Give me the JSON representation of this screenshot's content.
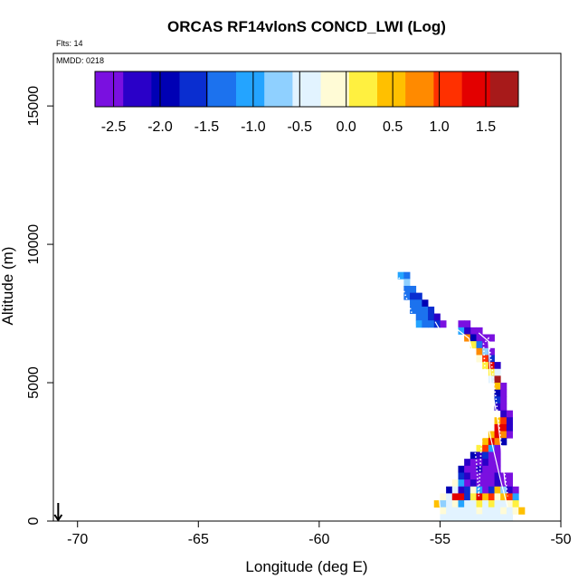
{
  "chart_data": {
    "type": "heatmap",
    "title": "ORCAS RF14vlonS CONCD_LWI (Log)",
    "xlabel": "Longitude (deg E)",
    "ylabel": "Altitude (m)",
    "xlim": [
      -71,
      -50
    ],
    "ylim": [
      0,
      16500
    ],
    "xticks": [
      "-70",
      "-65",
      "-60",
      "-55",
      "-50"
    ],
    "yticks": [
      "0",
      "5000",
      "10000",
      "15000"
    ],
    "flts_label": "Flts: 14",
    "mmdd_label": "MMDD: 0218",
    "colorbar": {
      "range": [
        -2.7,
        1.85
      ],
      "ticks": [
        "-2.5",
        "-2.0",
        "-1.5",
        "-1.0",
        "-0.5",
        "0.0",
        "0.5",
        "1.0",
        "1.5"
      ],
      "colors": [
        "#7a10e0",
        "#2a00c8",
        "#0000b4",
        "#0a2ed0",
        "#1c72ee",
        "#24a4ff",
        "#8fd0ff",
        "#e2f3ff",
        "#fffbd6",
        "#fff040",
        "#ffc000",
        "#ff8a00",
        "#ff3000",
        "#e30000",
        "#a71a1a"
      ]
    },
    "grid_cell": {
      "dx": 0.25,
      "dy": 250
    },
    "cells": [
      {
        "x": -56.75,
        "y": 8750,
        "v": -1.1
      },
      {
        "x": -56.5,
        "y": 8750,
        "v": -1.2
      },
      {
        "x": -56.5,
        "y": 8500,
        "v": -0.8
      },
      {
        "x": -56.5,
        "y": 8250,
        "v": -1.2
      },
      {
        "x": -56.25,
        "y": 8250,
        "v": -1.3
      },
      {
        "x": -56.5,
        "y": 8000,
        "v": -1.4
      },
      {
        "x": -56.25,
        "y": 8000,
        "v": -1.6
      },
      {
        "x": -56.0,
        "y": 8000,
        "v": -1.7
      },
      {
        "x": -56.25,
        "y": 7750,
        "v": -1.4
      },
      {
        "x": -56.0,
        "y": 7750,
        "v": -1.3
      },
      {
        "x": -55.75,
        "y": 7750,
        "v": -1.8
      },
      {
        "x": -56.25,
        "y": 7500,
        "v": -1.3
      },
      {
        "x": -56.0,
        "y": 7500,
        "v": -1.2
      },
      {
        "x": -55.75,
        "y": 7500,
        "v": -1.4
      },
      {
        "x": -55.5,
        "y": 7500,
        "v": -1.6
      },
      {
        "x": -56.0,
        "y": 7250,
        "v": -1.2
      },
      {
        "x": -55.75,
        "y": 7250,
        "v": -1.3
      },
      {
        "x": -55.5,
        "y": 7250,
        "v": -1.5
      },
      {
        "x": -55.25,
        "y": 7250,
        "v": -2.3
      },
      {
        "x": -54.25,
        "y": 7000,
        "v": -2.5
      },
      {
        "x": -54.0,
        "y": 7000,
        "v": -2.4
      },
      {
        "x": -56.0,
        "y": 7000,
        "v": -1.1
      },
      {
        "x": -55.75,
        "y": 7000,
        "v": -1.2
      },
      {
        "x": -55.5,
        "y": 7000,
        "v": -1.3
      },
      {
        "x": -55.25,
        "y": 7000,
        "v": -1.7
      },
      {
        "x": -55.0,
        "y": 7000,
        "v": -2.4
      },
      {
        "x": -53.75,
        "y": 6750,
        "v": -2.5
      },
      {
        "x": -53.5,
        "y": 6750,
        "v": -2.6
      },
      {
        "x": -54.25,
        "y": 6750,
        "v": -1.0
      },
      {
        "x": -54.0,
        "y": 6750,
        "v": -2.2
      },
      {
        "x": -53.25,
        "y": 6500,
        "v": -2.6
      },
      {
        "x": -53.0,
        "y": 6500,
        "v": -2.7
      },
      {
        "x": -54.0,
        "y": 6500,
        "v": 0.8
      },
      {
        "x": -53.75,
        "y": 6500,
        "v": -1.8
      },
      {
        "x": -53.5,
        "y": 6500,
        "v": -2.4
      },
      {
        "x": -53.75,
        "y": 6250,
        "v": 0.1
      },
      {
        "x": -53.5,
        "y": 6250,
        "v": -1.2
      },
      {
        "x": -53.25,
        "y": 6250,
        "v": -2.4
      },
      {
        "x": -53.5,
        "y": 6000,
        "v": 0.7
      },
      {
        "x": -53.25,
        "y": 6000,
        "v": -0.6
      },
      {
        "x": -53.0,
        "y": 6000,
        "v": -2.5
      },
      {
        "x": -53.5,
        "y": 5750,
        "v": -0.2
      },
      {
        "x": -53.25,
        "y": 5750,
        "v": 1.2
      },
      {
        "x": -53.0,
        "y": 5750,
        "v": -1.5
      },
      {
        "x": -53.25,
        "y": 5500,
        "v": 0.3
      },
      {
        "x": -53.0,
        "y": 5500,
        "v": 1.4
      },
      {
        "x": -52.75,
        "y": 5500,
        "v": -2.2
      },
      {
        "x": -53.0,
        "y": 5250,
        "v": 0.1
      },
      {
        "x": -52.75,
        "y": 5250,
        "v": -0.3
      },
      {
        "x": -53.0,
        "y": 5000,
        "v": -0.5
      },
      {
        "x": -52.75,
        "y": 5000,
        "v": 1.6
      },
      {
        "x": -52.75,
        "y": 4750,
        "v": 0.4
      },
      {
        "x": -52.5,
        "y": 4750,
        "v": -2.4
      },
      {
        "x": -52.75,
        "y": 4500,
        "v": -2.0
      },
      {
        "x": -52.5,
        "y": 4500,
        "v": -2.4
      },
      {
        "x": -52.75,
        "y": 4250,
        "v": -1.6
      },
      {
        "x": -52.5,
        "y": 4250,
        "v": -2.5
      },
      {
        "x": -52.75,
        "y": 4000,
        "v": -2.3
      },
      {
        "x": -52.5,
        "y": 4000,
        "v": -2.6
      },
      {
        "x": -52.5,
        "y": 3750,
        "v": -2.3
      },
      {
        "x": -52.25,
        "y": 3750,
        "v": -2.5
      },
      {
        "x": -52.75,
        "y": 3500,
        "v": 0.4
      },
      {
        "x": -52.5,
        "y": 3500,
        "v": 1.0
      },
      {
        "x": -52.25,
        "y": 3500,
        "v": -2.3
      },
      {
        "x": -52.75,
        "y": 3250,
        "v": 1.3
      },
      {
        "x": -52.5,
        "y": 3250,
        "v": 1.5
      },
      {
        "x": -52.25,
        "y": 3250,
        "v": -2.2
      },
      {
        "x": -53.0,
        "y": 3000,
        "v": 0.6
      },
      {
        "x": -52.75,
        "y": 3000,
        "v": 1.5
      },
      {
        "x": -52.5,
        "y": 3000,
        "v": 0.9
      },
      {
        "x": -52.25,
        "y": 3000,
        "v": -2.4
      },
      {
        "x": -53.25,
        "y": 2750,
        "v": 0.4
      },
      {
        "x": -53.0,
        "y": 2750,
        "v": 1.3
      },
      {
        "x": -52.75,
        "y": 2750,
        "v": 0.7
      },
      {
        "x": -52.5,
        "y": 2750,
        "v": -2.0
      },
      {
        "x": -53.5,
        "y": 2500,
        "v": 0.2
      },
      {
        "x": -53.25,
        "y": 2500,
        "v": 1.2
      },
      {
        "x": -53.0,
        "y": 2500,
        "v": -1.0
      },
      {
        "x": -52.75,
        "y": 2500,
        "v": -2.5
      },
      {
        "x": -53.75,
        "y": 2250,
        "v": -1.8
      },
      {
        "x": -53.5,
        "y": 2250,
        "v": -2.3
      },
      {
        "x": -53.25,
        "y": 2250,
        "v": -1.5
      },
      {
        "x": -53.0,
        "y": 2250,
        "v": -2.4
      },
      {
        "x": -52.75,
        "y": 2250,
        "v": -2.6
      },
      {
        "x": -54.0,
        "y": 2000,
        "v": -2.2
      },
      {
        "x": -53.75,
        "y": 2000,
        "v": -2.5
      },
      {
        "x": -53.5,
        "y": 2000,
        "v": -2.4
      },
      {
        "x": -53.25,
        "y": 2000,
        "v": -2.2
      },
      {
        "x": -53.0,
        "y": 2000,
        "v": -2.6
      },
      {
        "x": -52.75,
        "y": 2000,
        "v": -2.5
      },
      {
        "x": -54.25,
        "y": 1750,
        "v": -2.0
      },
      {
        "x": -54.0,
        "y": 1750,
        "v": -2.4
      },
      {
        "x": -53.75,
        "y": 1750,
        "v": -2.5
      },
      {
        "x": -53.5,
        "y": 1750,
        "v": -2.3
      },
      {
        "x": -53.25,
        "y": 1750,
        "v": -2.6
      },
      {
        "x": -53.0,
        "y": 1750,
        "v": -2.5
      },
      {
        "x": -52.75,
        "y": 1750,
        "v": -2.4
      },
      {
        "x": -54.25,
        "y": 1500,
        "v": -1.6
      },
      {
        "x": -54.0,
        "y": 1500,
        "v": -2.3
      },
      {
        "x": -53.75,
        "y": 1500,
        "v": -2.6
      },
      {
        "x": -53.5,
        "y": 1500,
        "v": -2.5
      },
      {
        "x": -53.25,
        "y": 1500,
        "v": -2.4
      },
      {
        "x": -53.0,
        "y": 1500,
        "v": -2.5
      },
      {
        "x": -52.75,
        "y": 1500,
        "v": -2.3
      },
      {
        "x": -52.5,
        "y": 1500,
        "v": -2.6
      },
      {
        "x": -52.25,
        "y": 1500,
        "v": -2.7
      },
      {
        "x": -54.5,
        "y": 1250,
        "v": -0.2
      },
      {
        "x": -54.25,
        "y": 1250,
        "v": -1.0
      },
      {
        "x": -54.0,
        "y": 1250,
        "v": -2.5
      },
      {
        "x": -53.75,
        "y": 1250,
        "v": -2.3
      },
      {
        "x": -53.5,
        "y": 1250,
        "v": -2.4
      },
      {
        "x": -53.25,
        "y": 1250,
        "v": -2.6
      },
      {
        "x": -53.0,
        "y": 1250,
        "v": -2.4
      },
      {
        "x": -52.75,
        "y": 1250,
        "v": -2.2
      },
      {
        "x": -52.5,
        "y": 1250,
        "v": -2.4
      },
      {
        "x": -52.25,
        "y": 1250,
        "v": -2.6
      },
      {
        "x": -54.75,
        "y": 1000,
        "v": -1.9
      },
      {
        "x": -54.5,
        "y": 1000,
        "v": -0.4
      },
      {
        "x": -54.25,
        "y": 1000,
        "v": -2.2
      },
      {
        "x": -54.0,
        "y": 1000,
        "v": -1.7
      },
      {
        "x": -53.75,
        "y": 1000,
        "v": -0.1
      },
      {
        "x": -53.5,
        "y": 1000,
        "v": -1.0
      },
      {
        "x": -53.25,
        "y": 1000,
        "v": -2.4
      },
      {
        "x": -53.0,
        "y": 1000,
        "v": -1.6
      },
      {
        "x": -52.75,
        "y": 1000,
        "v": 0.6
      },
      {
        "x": -52.5,
        "y": 1000,
        "v": -0.8
      },
      {
        "x": -52.25,
        "y": 1000,
        "v": -2.2
      },
      {
        "x": -52.0,
        "y": 1000,
        "v": -2.4
      },
      {
        "x": -55.0,
        "y": 750,
        "v": -0.1
      },
      {
        "x": -54.75,
        "y": 750,
        "v": -0.5
      },
      {
        "x": -54.5,
        "y": 750,
        "v": 1.4
      },
      {
        "x": -54.25,
        "y": 750,
        "v": 1.3
      },
      {
        "x": -54.0,
        "y": 750,
        "v": -1.6
      },
      {
        "x": -53.75,
        "y": 750,
        "v": 0.2
      },
      {
        "x": -53.5,
        "y": 750,
        "v": 1.4
      },
      {
        "x": -53.25,
        "y": 750,
        "v": 0.5
      },
      {
        "x": -53.0,
        "y": 750,
        "v": 1.2
      },
      {
        "x": -52.75,
        "y": 750,
        "v": -0.2
      },
      {
        "x": -52.5,
        "y": 750,
        "v": 0.4
      },
      {
        "x": -52.25,
        "y": 750,
        "v": 1.2
      },
      {
        "x": -52.0,
        "y": 750,
        "v": -1.0
      },
      {
        "x": -55.25,
        "y": 500,
        "v": 0.5
      },
      {
        "x": -55.0,
        "y": 500,
        "v": -0.6
      },
      {
        "x": -54.75,
        "y": 500,
        "v": -0.3
      },
      {
        "x": -54.5,
        "y": 500,
        "v": -0.2
      },
      {
        "x": -54.25,
        "y": 500,
        "v": -0.9
      },
      {
        "x": -54.0,
        "y": 500,
        "v": -0.4
      },
      {
        "x": -53.75,
        "y": 500,
        "v": -0.3
      },
      {
        "x": -53.5,
        "y": 500,
        "v": 0.1
      },
      {
        "x": -53.25,
        "y": 500,
        "v": -0.5
      },
      {
        "x": -53.0,
        "y": 500,
        "v": 0.2
      },
      {
        "x": -52.75,
        "y": 500,
        "v": -0.4
      },
      {
        "x": -52.5,
        "y": 500,
        "v": -0.3
      },
      {
        "x": -52.25,
        "y": 500,
        "v": -0.2
      },
      {
        "x": -52.0,
        "y": 500,
        "v": 0.3
      },
      {
        "x": -55.0,
        "y": 250,
        "v": -0.2
      },
      {
        "x": -54.75,
        "y": 250,
        "v": -0.4
      },
      {
        "x": -54.5,
        "y": 250,
        "v": -0.3
      },
      {
        "x": -54.25,
        "y": 250,
        "v": -0.5
      },
      {
        "x": -54.0,
        "y": 250,
        "v": -0.4
      },
      {
        "x": -53.75,
        "y": 250,
        "v": -0.3
      },
      {
        "x": -53.5,
        "y": 250,
        "v": -0.2
      },
      {
        "x": -53.25,
        "y": 250,
        "v": -0.4
      },
      {
        "x": -53.0,
        "y": 250,
        "v": -0.3
      },
      {
        "x": -52.75,
        "y": 250,
        "v": -0.4
      },
      {
        "x": -52.5,
        "y": 250,
        "v": -0.2
      },
      {
        "x": -52.25,
        "y": 250,
        "v": -0.3
      },
      {
        "x": -52.0,
        "y": 250,
        "v": -0.1
      },
      {
        "x": -51.75,
        "y": 250,
        "v": 0.4
      },
      {
        "x": -55.0,
        "y": 0,
        "v": -0.3
      },
      {
        "x": -54.75,
        "y": 0,
        "v": -0.4
      },
      {
        "x": -54.5,
        "y": 0,
        "v": -0.5
      },
      {
        "x": -54.25,
        "y": 0,
        "v": -0.4
      },
      {
        "x": -54.0,
        "y": 0,
        "v": -0.5
      },
      {
        "x": -53.75,
        "y": 0,
        "v": -0.4
      },
      {
        "x": -53.5,
        "y": 0,
        "v": -0.3
      },
      {
        "x": -53.25,
        "y": 0,
        "v": -0.4
      },
      {
        "x": -53.0,
        "y": 0,
        "v": -0.5
      },
      {
        "x": -52.75,
        "y": 0,
        "v": -0.4
      },
      {
        "x": -52.5,
        "y": 0,
        "v": -0.3
      },
      {
        "x": -52.25,
        "y": 0,
        "v": -0.4
      }
    ],
    "flight_track": [
      [
        -56.7,
        8800
      ],
      [
        -56.2,
        7600
      ],
      [
        -55.6,
        5600
      ],
      [
        -55.0,
        3400
      ],
      [
        -54.9,
        2000
      ],
      [
        -55.1,
        900
      ],
      [
        -54.7,
        2600
      ],
      [
        -54.4,
        4600
      ],
      [
        -54.6,
        6200
      ],
      [
        -54.5,
        7000
      ],
      [
        -54.1,
        6500
      ],
      [
        -53.9,
        4500
      ],
      [
        -53.5,
        2200
      ],
      [
        -53.4,
        900
      ],
      [
        -53.3,
        2600
      ],
      [
        -53.1,
        4800
      ],
      [
        -53.2,
        6400
      ],
      [
        -53.0,
        6600
      ],
      [
        -52.7,
        4500
      ],
      [
        -52.4,
        2300
      ],
      [
        -52.2,
        900
      ]
    ],
    "profile_lines": [
      [
        [
          -55.2,
          7200
        ],
        [
          -55.0,
          6900
        ],
        [
          -55.3,
          3900
        ],
        [
          -55.2,
          2400
        ],
        [
          -55.0,
          500
        ]
      ],
      [
        [
          -54.4,
          7000
        ],
        [
          -53.8,
          6600
        ],
        [
          -53.5,
          5600
        ],
        [
          -53.2,
          4300
        ],
        [
          -52.9,
          3000
        ],
        [
          -52.5,
          1500
        ],
        [
          -52.2,
          500
        ]
      ],
      [
        [
          -53.4,
          6800
        ],
        [
          -53.0,
          6500
        ],
        [
          -52.9,
          5000
        ],
        [
          -52.6,
          3600
        ],
        [
          -52.3,
          1300
        ]
      ]
    ],
    "arrow_longitude": -70.8
  }
}
